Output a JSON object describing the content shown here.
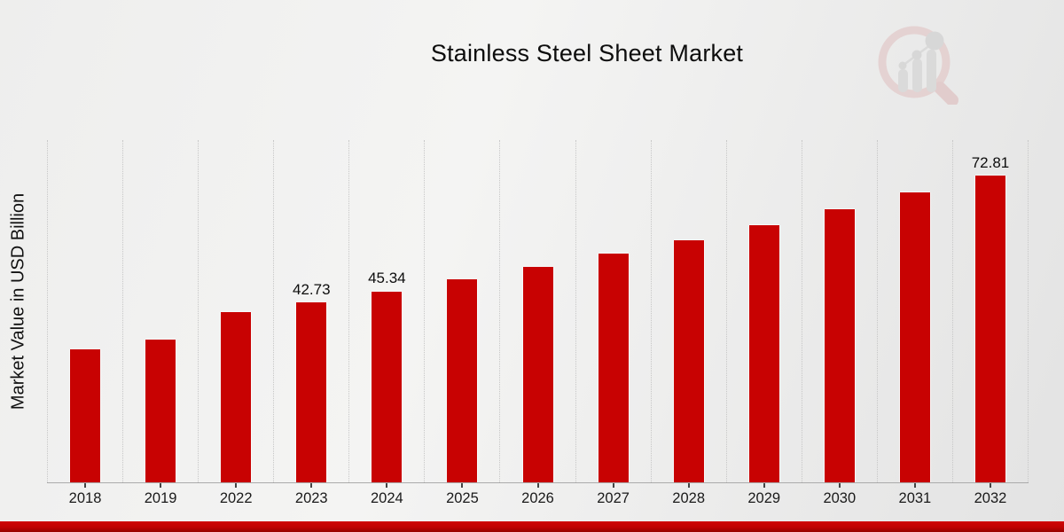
{
  "chart_data": {
    "type": "bar",
    "title": "Stainless Steel Sheet Market",
    "ylabel": "Market Value in USD Billion",
    "xlabel": "",
    "legend": "none",
    "grid": "vertical-dotted-between-categories",
    "bar_color": "#c80202",
    "ylim": [
      0,
      81.2
    ],
    "categories": [
      "2018",
      "2019",
      "2022",
      "2023",
      "2024",
      "2025",
      "2026",
      "2027",
      "2028",
      "2029",
      "2030",
      "2031",
      "2032"
    ],
    "values": [
      31.6,
      33.9,
      40.3,
      42.73,
      45.34,
      48.1,
      51.1,
      54.3,
      57.5,
      61.0,
      64.8,
      68.7,
      72.81
    ],
    "data_labels": {
      "2023": "42.73",
      "2024": "45.34",
      "2032": "72.81"
    }
  },
  "icons": {
    "watermark": "magnifier-bar-chart-logo"
  },
  "footer": {
    "accent_color": "#c00202"
  }
}
